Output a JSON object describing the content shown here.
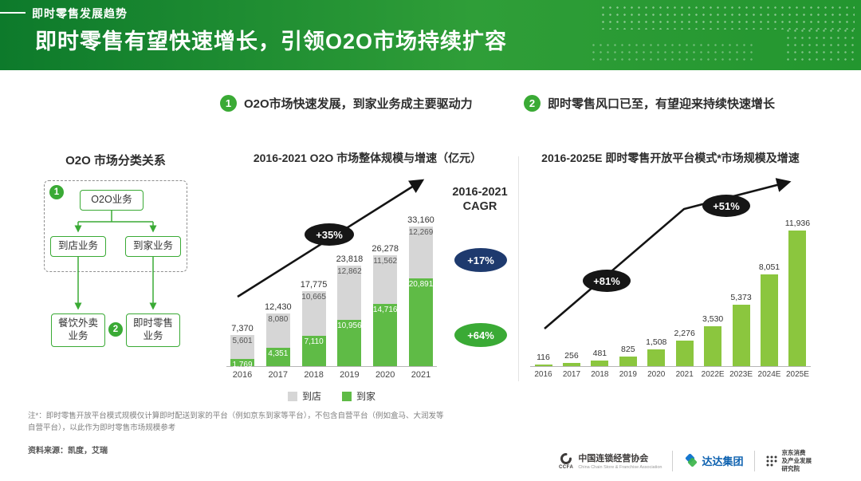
{
  "header": {
    "tag": "即时零售发展趋势",
    "title": "即时零售有望快速增长，引领O2O市场持续扩容"
  },
  "sections": [
    {
      "num": "1",
      "text": "O2O市场快速发展，到家业务成主要驱动力"
    },
    {
      "num": "2",
      "text": "即时零售风口已至，有望迎来持续快速增长"
    }
  ],
  "diagram": {
    "title": "O2O 市场分类关系",
    "badge1": "1",
    "badge2": "2",
    "root": "O2O业务",
    "store": "到店业务",
    "home": "到家业务",
    "leaf_left_line1": "餐饮外卖",
    "leaf_left_line2": "业务",
    "leaf_right_line1": "即时零售",
    "leaf_right_line2": "业务"
  },
  "chart_data": [
    {
      "type": "bar",
      "stacked": true,
      "title": "2016-2021 O2O 市场整体规模与增速（亿元）",
      "categories": [
        "2016",
        "2017",
        "2018",
        "2019",
        "2020",
        "2021"
      ],
      "series": [
        {
          "name": "到店",
          "color": "#d6d6d6",
          "values": [
            5601,
            8080,
            10665,
            12862,
            11562,
            12269
          ]
        },
        {
          "name": "到家",
          "color": "#5fbb46",
          "values": [
            1769,
            4351,
            7110,
            10956,
            14716,
            20891
          ]
        }
      ],
      "totals": [
        7370,
        12430,
        17775,
        23818,
        26278,
        33160
      ],
      "ylim": [
        0,
        33160
      ],
      "grid": false,
      "legend_position": "bottom",
      "growth_badge": "+35%",
      "cagr_label_line1": "2016-2021",
      "cagr_label_line2": "CAGR",
      "cagr_store": "+17%",
      "cagr_home": "+64%"
    },
    {
      "type": "bar",
      "title": "2016-2025E 即时零售开放平台模式*市场规模及增速",
      "categories": [
        "2016",
        "2017",
        "2018",
        "2019",
        "2020",
        "2021",
        "2022E",
        "2023E",
        "2024E",
        "2025E"
      ],
      "values": [
        116,
        256,
        481,
        825,
        1508,
        2276,
        3530,
        5373,
        8051,
        11936
      ],
      "ylim": [
        0,
        11936
      ],
      "grid": false,
      "bar_color": "#8bc63e",
      "growth_badges": [
        "+81%",
        "+51%"
      ]
    }
  ],
  "footnote_line1": "注*：即时零售开放平台模式规模仅计算即时配送到家的平台（例如京东到家等平台），不包含自营平台（例如盒马、大润发等",
  "footnote_line2": "自营平台），以此作为即时零售市场规模参考",
  "source": "资料来源：凯度，艾瑞",
  "logos": {
    "ccfa_mark": "CCFA",
    "ccfa_cn": "中国连锁经营协会",
    "ccfa_en": "China Chain Store & Franchise Association",
    "dada": "达达集团",
    "jd_line1": "京东消费",
    "jd_line2": "及产业发展",
    "jd_line3": "研究院"
  },
  "colors": {
    "accent_green": "#3aaa35",
    "header_gradient_left": "#0d7a2b",
    "header_gradient_right": "#2f9e38",
    "bar_store_gray": "#d6d6d6",
    "bar_home_green": "#5fbb46",
    "bar_right_green": "#8bc63e",
    "badge_black": "#161616",
    "badge_navy": "#1e3a6e"
  }
}
